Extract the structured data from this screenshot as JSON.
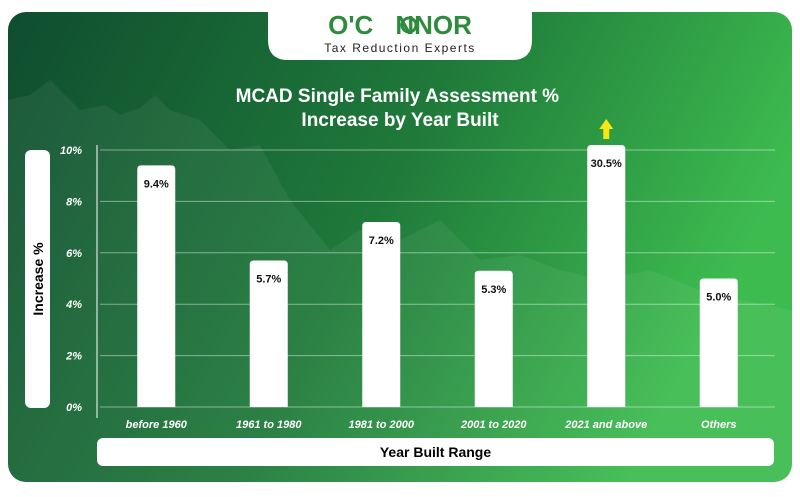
{
  "brand": {
    "name_prefix": "O'C",
    "name_suffix": "NNOR",
    "tagline": "Tax Reduction Experts",
    "green": "#2e8b3e"
  },
  "chart_data": {
    "type": "bar",
    "title": "MCAD Single Family Assessment % Increase by Year Built",
    "title_lines": [
      "MCAD Single Family Assessment %",
      "Increase by Year Built"
    ],
    "xlabel": "Year Built Range",
    "ylabel": "Increase %",
    "categories": [
      "before 1960",
      "1961 to 1980",
      "1981 to 2000",
      "2001 to 2020",
      "2021 and above",
      "Others"
    ],
    "values": [
      9.4,
      5.7,
      7.2,
      5.3,
      30.5,
      5.0
    ],
    "data_labels": [
      "9.4%",
      "5.7%",
      "7.2%",
      "5.3%",
      "30.5%",
      "5.0%"
    ],
    "y_ticks": [
      "0%",
      "2%",
      "4%",
      "6%",
      "8%",
      "10%"
    ],
    "ylim": [
      0,
      10
    ],
    "clipped_bar_index": 4,
    "grid": true,
    "bar_color": "#ffffff",
    "arrow_color": "#f5e614"
  }
}
